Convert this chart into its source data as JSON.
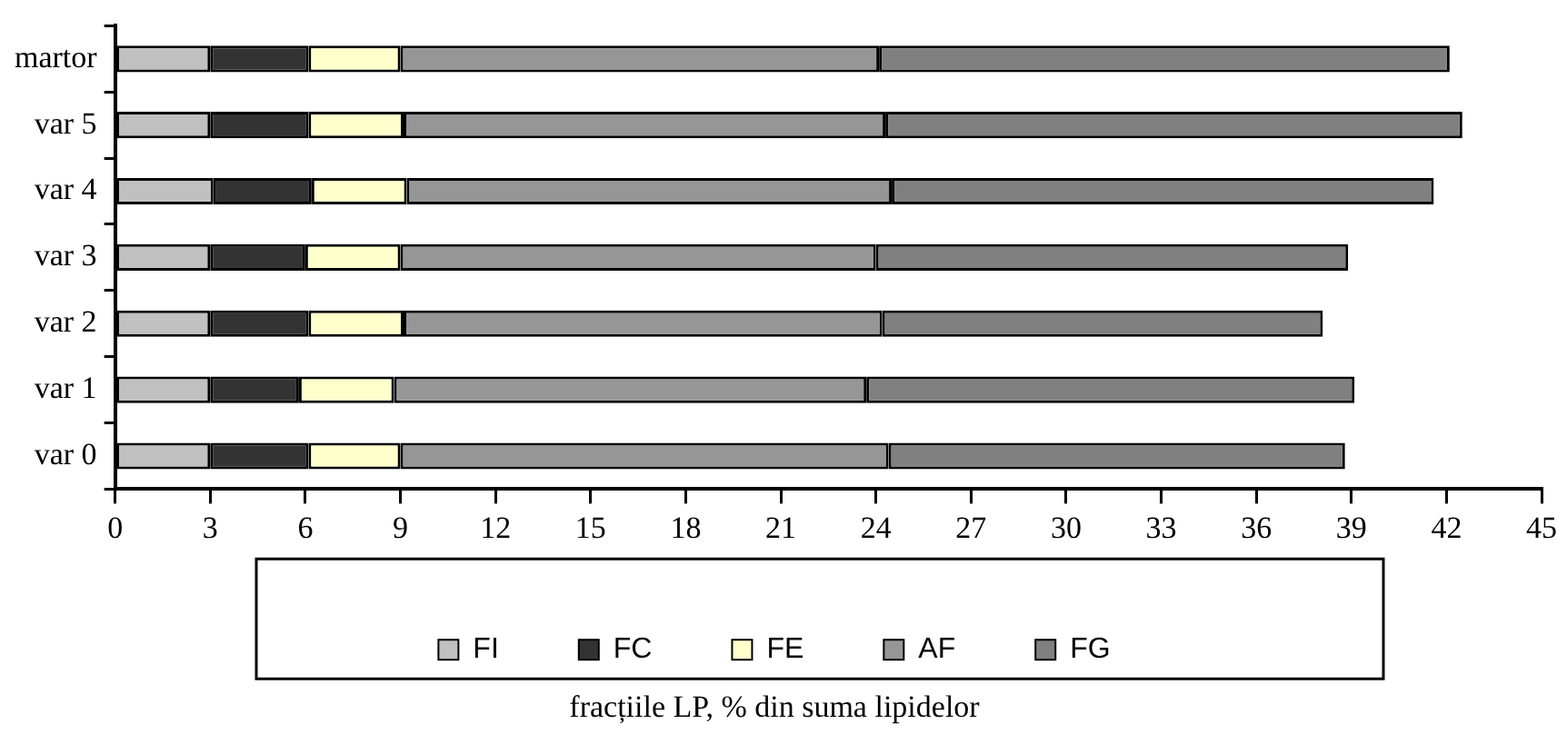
{
  "chart_data": {
    "type": "bar",
    "orientation": "horizontal",
    "stacked": true,
    "xlabel": "fracțiile LP, % din suma lipidelor",
    "categories": [
      "martor",
      "var 5",
      "var 4",
      "var 3",
      "var 2",
      "var 1",
      "var 0"
    ],
    "series": [
      {
        "name": "FI",
        "color": "#c0c0c0",
        "values": [
          3.0,
          3.0,
          3.1,
          3.0,
          3.0,
          3.0,
          3.0
        ]
      },
      {
        "name": "FC",
        "color": "#333333",
        "values": [
          3.1,
          3.1,
          3.1,
          3.0,
          3.1,
          2.8,
          3.1
        ]
      },
      {
        "name": "FE",
        "color": "#ffffcc",
        "values": [
          2.9,
          3.0,
          3.0,
          3.0,
          3.0,
          3.0,
          2.9
        ]
      },
      {
        "name": "AF",
        "color": "#969696",
        "values": [
          15.1,
          15.2,
          15.3,
          15.0,
          15.1,
          14.9,
          15.4
        ]
      },
      {
        "name": "FG",
        "color": "#808080",
        "values": [
          18.0,
          18.2,
          17.1,
          14.9,
          13.9,
          15.4,
          14.4
        ]
      }
    ],
    "xlim": [
      0,
      45
    ],
    "xticks": [
      0,
      3,
      6,
      9,
      12,
      15,
      18,
      21,
      24,
      27,
      30,
      33,
      36,
      39,
      42,
      45
    ],
    "grid": false,
    "legend": "bottom"
  }
}
